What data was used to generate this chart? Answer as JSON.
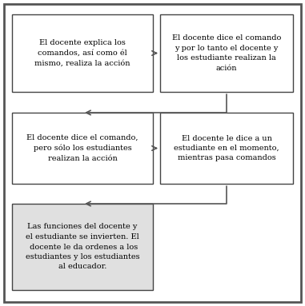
{
  "box1_text": "El docente explica los\ncomandos, así como él\nmismo, realiza la acción",
  "box2_text": "El docente dice el comando\ny por lo tanto el docente y\nlos estudiante realizan la\nación",
  "box3_text": "El docente dice el comando,\npero sólo los estudiantes\nrealizan la acción",
  "box4_text": "El docente le dice a un\nestudiante en el momento,\nmientras pasa comandos",
  "box5_text": "Las funciones del docente y\nel estudiante se invierten. El\n docente le da ordenes a los\nestudiantes y los estudiantes\nal educador.",
  "outer_border_color": "#555555",
  "box_edge_color": "#444444",
  "box_fill_color": "#ffffff",
  "box5_fill_color": "#e0e0e0",
  "arrow_color": "#555555",
  "text_color": "#000000",
  "bg_color": "#ffffff",
  "font_size": 7.0,
  "fig_width": 3.81,
  "fig_height": 3.83
}
